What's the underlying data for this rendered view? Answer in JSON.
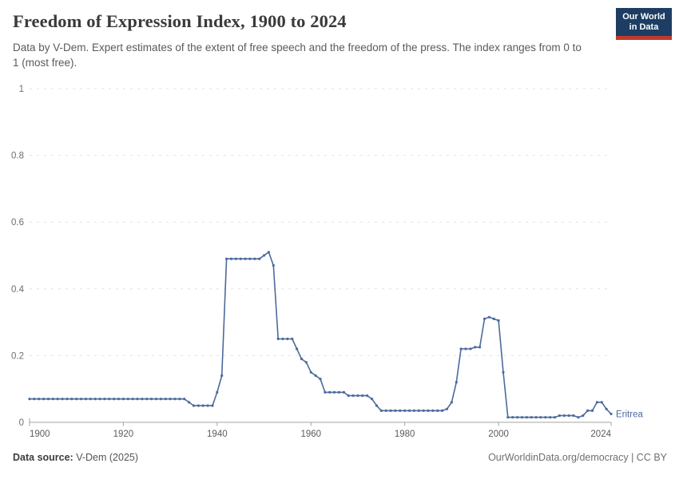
{
  "header": {
    "title": "Freedom of Expression Index, 1900 to 2024",
    "subtitle": "Data by V-Dem. Expert estimates of the extent of free speech and the freedom of the press. The index ranges from 0 to 1 (most free).",
    "logo": {
      "line1": "Our World",
      "line2": "in Data"
    }
  },
  "footer": {
    "source_label": "Data source:",
    "source_value": "V-Dem (2025)",
    "right_text": "OurWorldinData.org/democracy | CC BY"
  },
  "colors": {
    "series_blue": "#4c6a9c",
    "grid": "#e2e2e2",
    "axis": "#a3a3a3",
    "y_tick_label": "#6e6e6e",
    "x_tick_label": "#5b5b5b",
    "logo_navy": "#1d3d63",
    "logo_red": "#c0392b"
  },
  "chart_data": {
    "type": "line",
    "title": "Freedom of Expression Index, 1900 to 2024",
    "xlabel": "",
    "ylabel": "",
    "xlim": [
      1900,
      2024
    ],
    "ylim": [
      0,
      1
    ],
    "x_start": 1900,
    "x_step": 1,
    "x_ticks": [
      1900,
      1920,
      1940,
      1960,
      1980,
      2000,
      2024
    ],
    "y_ticks": [
      0,
      0.2,
      0.4,
      0.6,
      0.8,
      1
    ],
    "grid": "horizontal-dashed",
    "legend_position": "end-of-line-label",
    "markers": true,
    "series": [
      {
        "name": "Eritrea",
        "color": "#4c6a9c",
        "values": [
          0.07,
          0.07,
          0.07,
          0.07,
          0.07,
          0.07,
          0.07,
          0.07,
          0.07,
          0.07,
          0.07,
          0.07,
          0.07,
          0.07,
          0.07,
          0.07,
          0.07,
          0.07,
          0.07,
          0.07,
          0.07,
          0.07,
          0.07,
          0.07,
          0.07,
          0.07,
          0.07,
          0.07,
          0.07,
          0.07,
          0.07,
          0.07,
          0.07,
          0.07,
          0.06,
          0.05,
          0.05,
          0.05,
          0.05,
          0.05,
          0.09,
          0.14,
          0.49,
          0.49,
          0.49,
          0.49,
          0.49,
          0.49,
          0.49,
          0.49,
          0.5,
          0.51,
          0.47,
          0.25,
          0.25,
          0.25,
          0.25,
          0.22,
          0.19,
          0.18,
          0.15,
          0.14,
          0.13,
          0.09,
          0.09,
          0.09,
          0.09,
          0.09,
          0.08,
          0.08,
          0.08,
          0.08,
          0.08,
          0.07,
          0.05,
          0.035,
          0.035,
          0.035,
          0.035,
          0.035,
          0.035,
          0.035,
          0.035,
          0.035,
          0.035,
          0.035,
          0.035,
          0.035,
          0.035,
          0.04,
          0.06,
          0.12,
          0.22,
          0.22,
          0.22,
          0.225,
          0.225,
          0.31,
          0.315,
          0.31,
          0.305,
          0.15,
          0.015,
          0.015,
          0.015,
          0.015,
          0.015,
          0.015,
          0.015,
          0.015,
          0.015,
          0.015,
          0.015,
          0.02,
          0.02,
          0.02,
          0.02,
          0.015,
          0.02,
          0.035,
          0.035,
          0.06,
          0.06,
          0.04,
          0.025
        ]
      }
    ]
  }
}
